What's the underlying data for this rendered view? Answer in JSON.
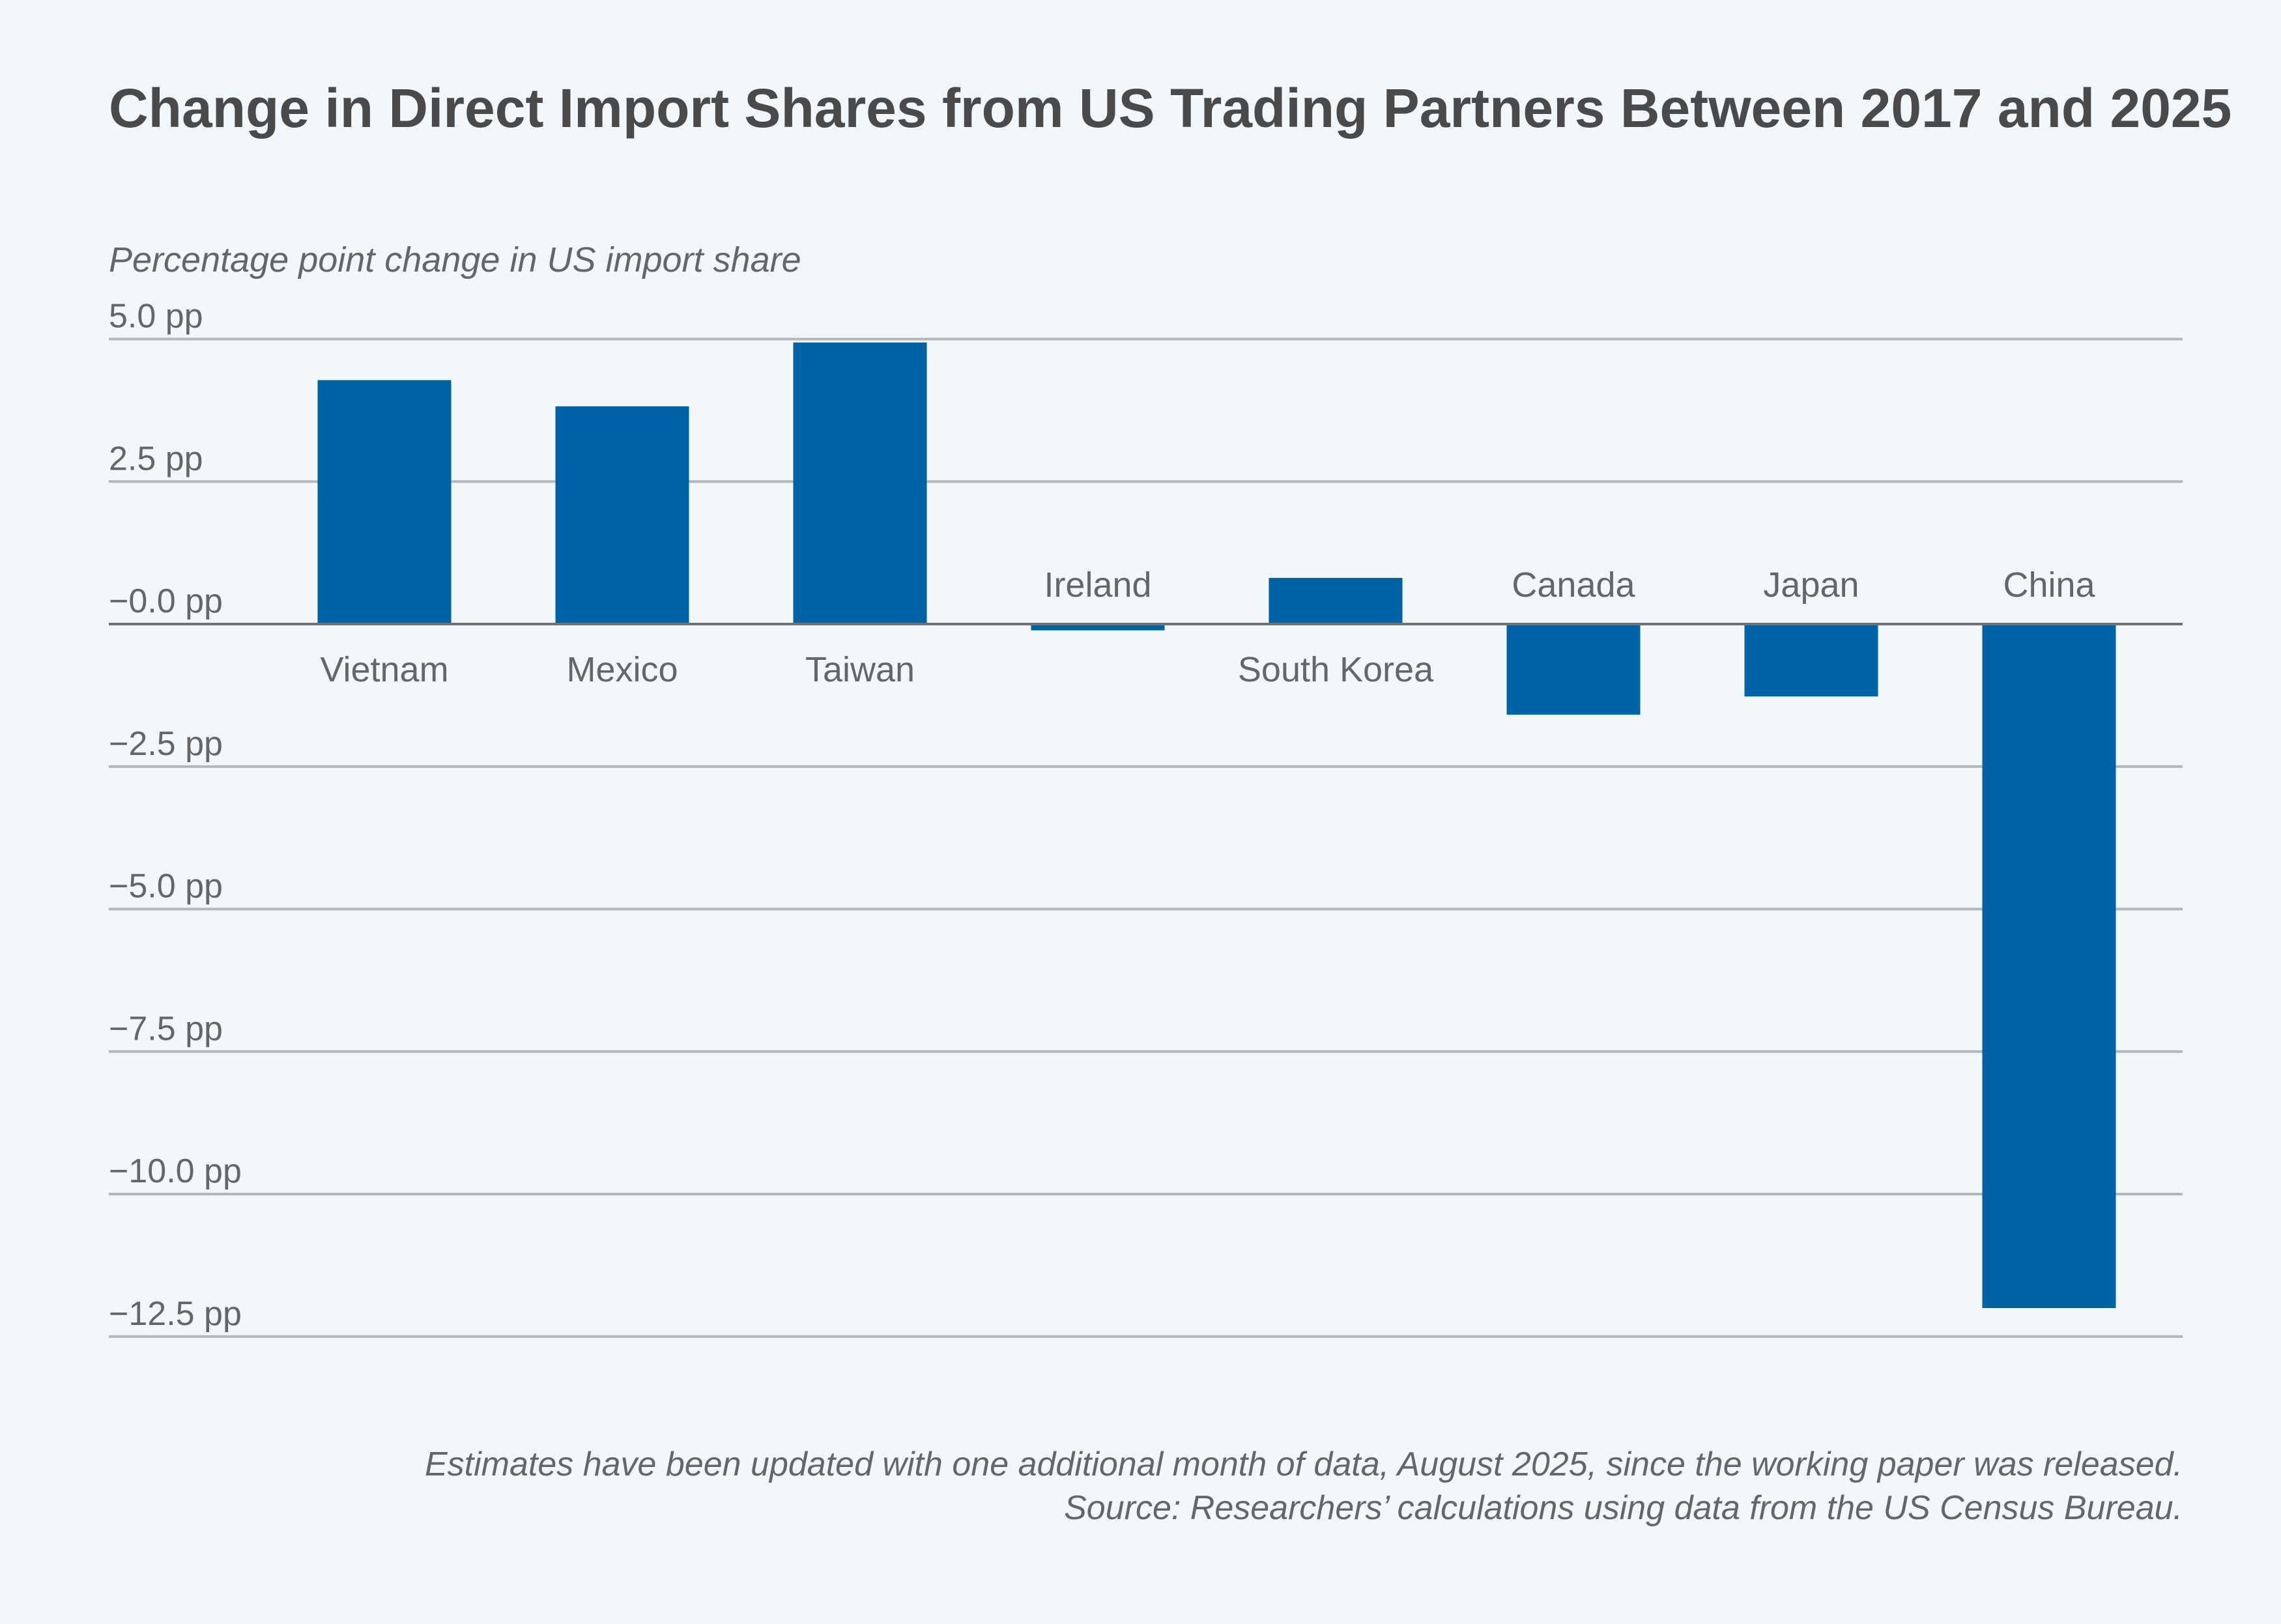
{
  "title": "Change in Direct Import Shares from US Trading Partners Between 2017 and 2025",
  "footnote": "Estimates have been updated with one additional month of data, August 2025, since the working paper was released.",
  "source": "Source: Researchers’ calculations using data from the US Census Bureau.",
  "colors": {
    "bar": "#0063a6",
    "grid": "#b4b8bd",
    "zero_line": "#6f7377",
    "background": "#f2f7fb"
  },
  "chart_data": {
    "type": "bar",
    "title": "Change in Direct Import Shares from US Trading Partners Between 2017 and 2025",
    "ylabel": "Percentage point change in US import share",
    "xlabel": "",
    "categories": [
      "Vietnam",
      "Mexico",
      "Taiwan",
      "Ireland",
      "South Korea",
      "Canada",
      "Japan",
      "China"
    ],
    "values": [
      4.28,
      3.82,
      4.94,
      -0.11,
      0.81,
      -1.59,
      -1.27,
      -12.0
    ],
    "ylim": [
      -12.5,
      5.0
    ],
    "yticks": [
      5.0,
      2.5,
      0.0,
      -2.5,
      -5.0,
      -7.5,
      -10.0,
      -12.5
    ],
    "ytick_labels": [
      "5.0 pp",
      "2.5 pp",
      "−0.0 pp",
      "−2.5 pp",
      "−5.0 pp",
      "−7.5 pp",
      "−10.0 pp",
      "−12.5 pp"
    ],
    "grid": true,
    "legend": "none"
  }
}
